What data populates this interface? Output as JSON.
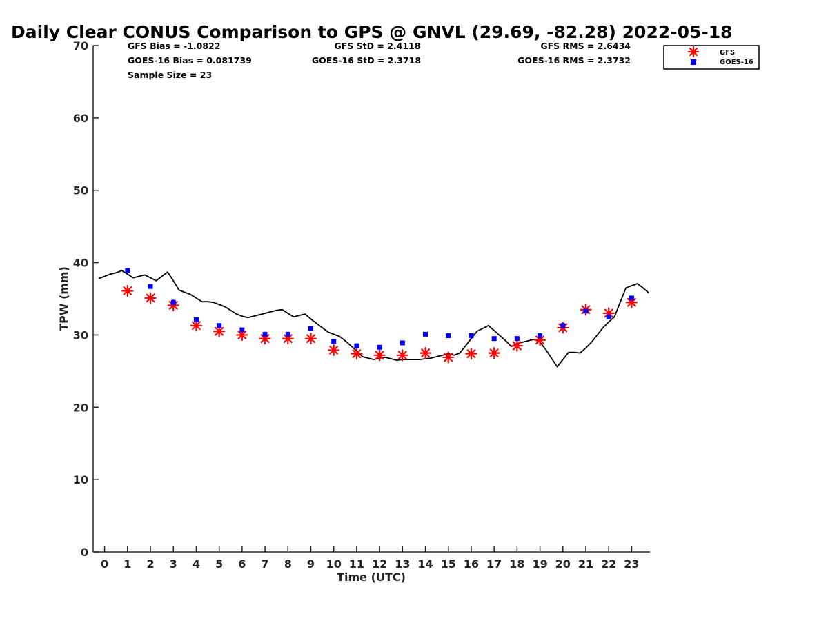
{
  "colors": {
    "gfs": "#ff0000",
    "goes": "#0000ff",
    "gps": "#000000",
    "axis": "#262626"
  },
  "stats": {
    "gfs_bias": "GFS Bias = -1.0822",
    "goes_bias": "GOES-16 Bias = 0.081739",
    "sample_size": "Sample Size = 23",
    "gfs_std": "GFS StD = 2.4118",
    "goes_std": "GOES-16 StD = 2.3718",
    "gfs_rms": "GFS RMS = 2.6434",
    "goes_rms": "GOES-16 RMS = 2.3732"
  },
  "chart_data": {
    "type": "scatter",
    "title": "Daily Clear CONUS Comparison to GPS @ GNVL (29.69, -82.28) 2022-05-18",
    "xlabel": "Time (UTC)",
    "ylabel": "TPW (mm)",
    "xlim": [
      -0.5,
      23.8
    ],
    "ylim": [
      0,
      70
    ],
    "xticks": [
      "0",
      "1",
      "2",
      "3",
      "4",
      "5",
      "6",
      "7",
      "8",
      "9",
      "10",
      "11",
      "12",
      "13",
      "14",
      "15",
      "16",
      "17",
      "18",
      "19",
      "20",
      "21",
      "22",
      "23"
    ],
    "yticks": [
      "0",
      "10",
      "20",
      "30",
      "40",
      "50",
      "60",
      "70"
    ],
    "grid": false,
    "legend_position": "top-right",
    "series": [
      {
        "name": "GFS",
        "marker": "asterisk",
        "x": [
          1,
          2,
          3,
          4,
          5,
          6,
          7,
          8,
          9,
          10,
          11,
          12,
          13,
          14,
          15,
          16,
          17,
          18,
          19,
          20,
          21,
          22,
          23
        ],
        "y": [
          36.1,
          35.1,
          34.1,
          31.3,
          30.5,
          30.0,
          29.5,
          29.5,
          29.5,
          27.9,
          27.4,
          27.2,
          27.2,
          27.5,
          26.9,
          27.4,
          27.5,
          28.5,
          29.3,
          31.0,
          33.5,
          33.0,
          34.5
        ]
      },
      {
        "name": "GOES-16",
        "marker": "square",
        "x": [
          1,
          2,
          3,
          4,
          5,
          6,
          7,
          8,
          9,
          10,
          11,
          12,
          13,
          14,
          15,
          16,
          17,
          18,
          19,
          20,
          21,
          22,
          23
        ],
        "y": [
          38.9,
          36.7,
          34.5,
          32.1,
          31.3,
          30.7,
          30.1,
          30.1,
          30.9,
          29.1,
          28.5,
          28.3,
          28.9,
          30.1,
          29.9,
          29.9,
          29.5,
          29.5,
          29.9,
          31.3,
          33.3,
          32.5,
          35.1
        ]
      },
      {
        "marker": "line",
        "x": [
          -0.25,
          0,
          0.25,
          0.5,
          0.75,
          1,
          1.25,
          1.5,
          1.75,
          2,
          2.25,
          2.5,
          2.75,
          3,
          3.25,
          3.5,
          3.75,
          4,
          4.25,
          4.5,
          4.75,
          5,
          5.25,
          5.5,
          5.75,
          6,
          6.25,
          6.5,
          6.75,
          7,
          7.25,
          7.5,
          7.75,
          8,
          8.25,
          8.5,
          8.75,
          9,
          9.25,
          9.5,
          9.75,
          10,
          10.25,
          10.5,
          10.75,
          11,
          11.25,
          11.5,
          11.75,
          12,
          12.25,
          12.5,
          12.75,
          13,
          13.25,
          13.5,
          13.75,
          14,
          14.25,
          14.5,
          14.75,
          15,
          15.25,
          15.5,
          15.75,
          16,
          16.25,
          16.5,
          16.75,
          17,
          17.25,
          17.5,
          17.75,
          18,
          18.25,
          18.5,
          18.75,
          19,
          19.25,
          19.5,
          19.75,
          20,
          20.25,
          20.5,
          20.75,
          21,
          21.25,
          21.5,
          21.75,
          22,
          22.25,
          22.5,
          22.75,
          23,
          23.25,
          23.5,
          23.75
        ],
        "y": [
          37.8,
          38.1,
          38.4,
          38.6,
          38.9,
          38.4,
          37.9,
          38.1,
          38.3,
          37.9,
          37.5,
          38.1,
          38.7,
          37.5,
          36.2,
          35.9,
          35.6,
          35.1,
          34.6,
          34.6,
          34.5,
          34.2,
          33.9,
          33.4,
          32.9,
          32.6,
          32.4,
          32.6,
          32.8,
          33.0,
          33.2,
          33.4,
          33.5,
          33.0,
          32.5,
          32.7,
          32.9,
          32.2,
          31.6,
          31.0,
          30.4,
          30.1,
          29.8,
          29.2,
          28.5,
          27.8,
          27.0,
          26.8,
          26.6,
          26.8,
          26.9,
          26.7,
          26.5,
          26.6,
          26.6,
          26.6,
          26.6,
          26.7,
          26.8,
          27.0,
          27.2,
          27.4,
          27.2,
          27.5,
          28.5,
          29.5,
          30.5,
          30.9,
          31.3,
          30.6,
          29.9,
          29.2,
          28.4,
          28.8,
          29.0,
          29.2,
          29.4,
          29.0,
          28.0,
          26.8,
          25.6,
          26.6,
          27.6,
          27.6,
          27.5,
          28.2,
          29.0,
          30.0,
          31.0,
          31.8,
          32.5,
          34.5,
          36.5,
          36.8,
          37.1,
          36.5,
          35.8
        ]
      }
    ]
  }
}
